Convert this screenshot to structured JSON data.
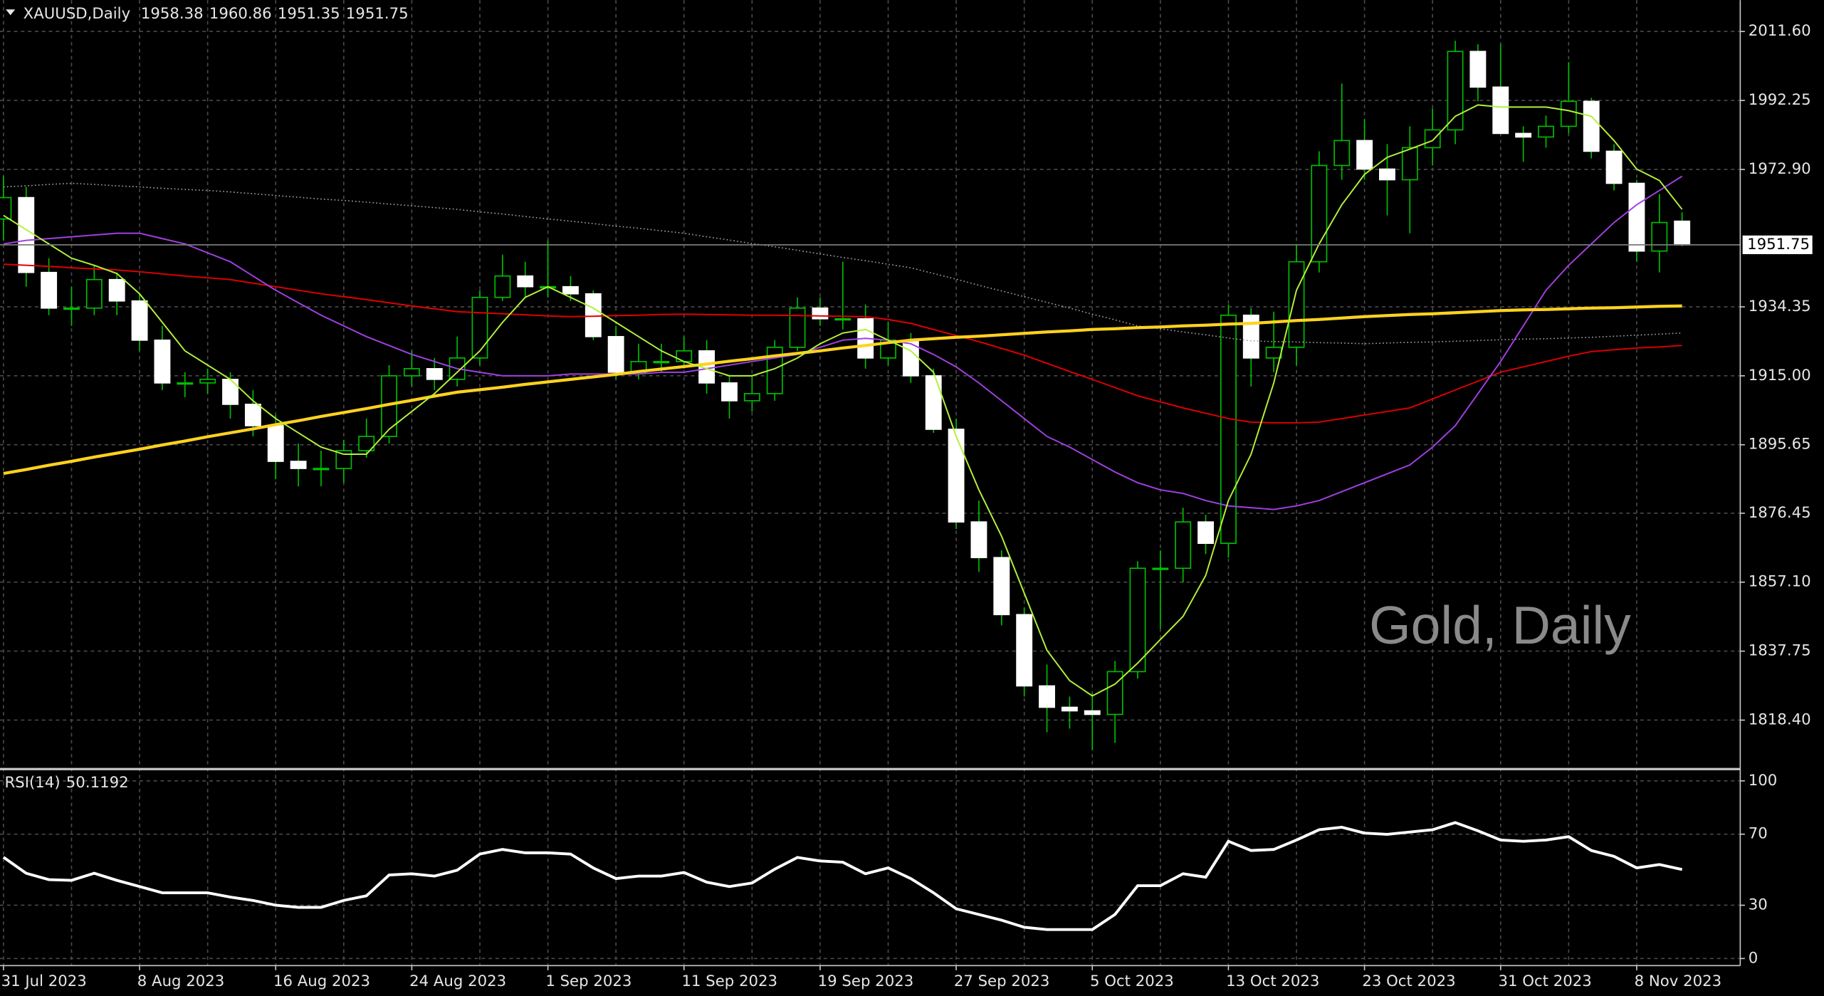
{
  "chart_data": [
    {
      "type": "candlestick",
      "title": "XAUUSD,Daily",
      "watermark": "Gold, Daily",
      "categories": [
        "31 Jul 2023",
        null,
        null,
        null,
        null,
        null,
        "8 Aug 2023",
        null,
        null,
        null,
        null,
        null,
        "16 Aug 2023",
        null,
        null,
        null,
        null,
        null,
        "24 Aug 2023",
        null,
        null,
        null,
        null,
        null,
        "1 Sep 2023",
        null,
        null,
        null,
        null,
        null,
        "11 Sep 2023",
        null,
        null,
        null,
        null,
        null,
        "19 Sep 2023",
        null,
        null,
        null,
        null,
        null,
        "27 Sep 2023",
        null,
        null,
        null,
        null,
        null,
        "5 Oct 2023",
        null,
        null,
        null,
        null,
        null,
        "13 Oct 2023",
        null,
        null,
        null,
        null,
        null,
        "23 Oct 2023",
        null,
        null,
        null,
        null,
        null,
        "31 Oct 2023",
        null,
        null,
        null,
        null,
        null,
        "8 Nov 2023",
        null,
        null
      ],
      "open": [
        1959,
        1965,
        1944,
        1934,
        1934,
        1942,
        1936,
        1925,
        1913,
        1913,
        1914,
        1907,
        1901,
        1891,
        1889,
        1889,
        1894,
        1898,
        1915,
        1917,
        1914,
        1920,
        1937,
        1943,
        1940,
        1940,
        1938,
        1926,
        1916,
        1919,
        1919,
        1922,
        1913,
        1908,
        1910,
        1923,
        1934,
        1931,
        1931,
        1920,
        1925,
        1915,
        1900,
        1874,
        1864,
        1848,
        1828,
        1822,
        1821,
        1820,
        1832,
        1861,
        1861,
        1874,
        1868,
        1932,
        1920,
        1923,
        1947,
        1974,
        1981,
        1973,
        1970,
        1979,
        1984,
        2006,
        1996,
        1983,
        1982,
        1985,
        1992,
        1978,
        1969,
        1950,
        1958.38
      ],
      "high": [
        1971,
        1968,
        1948,
        1940,
        1946,
        1944,
        1938,
        1929,
        1916,
        1917,
        1916,
        1911,
        1904,
        1896,
        1894,
        1897,
        1903,
        1918,
        1922,
        1920,
        1926,
        1939,
        1949,
        1947,
        1953,
        1943,
        1939,
        1929,
        1924,
        1924,
        1926,
        1925,
        1915,
        1915,
        1925,
        1937,
        1937,
        1947,
        1935,
        1930,
        1927,
        1917,
        1903,
        1880,
        1866,
        1850,
        1834,
        1825,
        1826,
        1835,
        1863,
        1866,
        1878,
        1876,
        1935,
        1934,
        1933,
        1952,
        1978,
        1997,
        1987,
        1980,
        1985,
        1990,
        2009,
        2008,
        2008,
        1985,
        1988,
        2003,
        1993,
        1980,
        1970,
        1966,
        1960.86
      ],
      "low": [
        1953,
        1940,
        1932,
        1929,
        1932,
        1932,
        1922,
        1911,
        1909,
        1910,
        1903,
        1898,
        1886,
        1884,
        1884,
        1885,
        1892,
        1896,
        1912,
        1911,
        1912,
        1918,
        1936,
        1937,
        1937,
        1936,
        1925,
        1914,
        1914,
        1916,
        1917,
        1910,
        1903,
        1905,
        1908,
        1922,
        1929,
        1928,
        1917,
        1918,
        1913,
        1899,
        1872,
        1860,
        1845,
        1825,
        1815,
        1816,
        1810,
        1812,
        1830,
        1844,
        1857,
        1865,
        1864,
        1912,
        1916,
        1918,
        1944,
        1970,
        1970,
        1960,
        1955,
        1974,
        1980,
        1992,
        1983,
        1975,
        1979,
        1983,
        1976,
        1967,
        1947,
        1944,
        1951.35
      ],
      "close": [
        1965,
        1944,
        1934,
        1934,
        1942,
        1936,
        1925,
        1913,
        1913,
        1914,
        1907,
        1901,
        1891,
        1889,
        1889,
        1894,
        1898,
        1915,
        1917,
        1914,
        1920,
        1937,
        1943,
        1940,
        1940,
        1938,
        1926,
        1916,
        1919,
        1919,
        1922,
        1913,
        1908,
        1910,
        1923,
        1934,
        1931,
        1931,
        1920,
        1925,
        1915,
        1900,
        1874,
        1864,
        1848,
        1828,
        1822,
        1821,
        1820,
        1832,
        1861,
        1861,
        1874,
        1868,
        1932,
        1920,
        1923,
        1947,
        1974,
        1981,
        1973,
        1970,
        1979,
        1984,
        2006,
        1996,
        1983,
        1982,
        1985,
        1992,
        1978,
        1969,
        1950,
        1958,
        1951.75
      ],
      "up_color": "#00c000",
      "down_color": "#ffffff",
      "wick_color": "#00c000",
      "overlays": [
        {
          "color": "#a0a0a0",
          "style": "dotted",
          "values": [
            1968,
            1968.3,
            1968.7,
            1969,
            1968.7,
            1968.3,
            1968,
            1967.6,
            1967.3,
            1967,
            1966.6,
            1966.1,
            1965.6,
            1965.1,
            1964.6,
            1964.2,
            1963.7,
            1963.2,
            1962.7,
            1962.2,
            1961.7,
            1961,
            1960.4,
            1959.7,
            1959,
            1958.4,
            1957.7,
            1957,
            1956.4,
            1955.7,
            1955,
            1954,
            1953.1,
            1952.1,
            1951.2,
            1950.2,
            1949.2,
            1948.2,
            1947.3,
            1946.3,
            1945.3,
            1943.7,
            1942.1,
            1940.4,
            1938.8,
            1937.2,
            1935.6,
            1934,
            1932.3,
            1930.7,
            1929,
            1928.2,
            1927.3,
            1926.5,
            1925.6,
            1924.8,
            1924.6,
            1924.5,
            1924.3,
            1924.2,
            1924,
            1924.2,
            1924.4,
            1924.5,
            1924.7,
            1924.9,
            1925.1,
            1925.3,
            1925.4,
            1925.6,
            1925.8,
            1926.1,
            1926.4,
            1926.7,
            1927
          ]
        },
        {
          "color": "#e00000",
          "style": "thin",
          "values": [
            1946.3,
            1946,
            1945.7,
            1945.3,
            1945,
            1944.7,
            1944.2,
            1943.6,
            1943,
            1942.5,
            1942,
            1941,
            1940,
            1939,
            1938,
            1937.2,
            1936.4,
            1935.5,
            1934.6,
            1933.8,
            1933,
            1932.7,
            1932.4,
            1932.1,
            1931.8,
            1931.6,
            1931.7,
            1931.9,
            1932,
            1932.2,
            1932.3,
            1932.2,
            1932.1,
            1932,
            1932,
            1931.9,
            1931.8,
            1931.7,
            1931.6,
            1930.8,
            1929.7,
            1928,
            1926.3,
            1924.6,
            1922.7,
            1920.8,
            1918.5,
            1916.2,
            1914,
            1911.7,
            1909.4,
            1907.7,
            1906,
            1904.5,
            1903,
            1902,
            1901.8,
            1901.8,
            1902,
            1903,
            1904,
            1905,
            1906,
            1908.5,
            1911,
            1913.5,
            1916,
            1917.5,
            1919,
            1920.5,
            1921.8,
            1922.3,
            1922.8,
            1923.1,
            1923.5
          ]
        },
        {
          "color": "#a040e0",
          "style": "thin",
          "values": [
            1952,
            1953,
            1953.5,
            1954,
            1954.5,
            1955,
            1955,
            1953.5,
            1952,
            1949.5,
            1947,
            1943,
            1939,
            1935.5,
            1932,
            1929,
            1926,
            1923.5,
            1921,
            1919,
            1917,
            1916,
            1915,
            1915,
            1915,
            1915.5,
            1915.5,
            1915.5,
            1915.5,
            1916,
            1916,
            1917,
            1918,
            1919,
            1920,
            1921,
            1923,
            1925,
            1925.5,
            1925,
            1924,
            1921,
            1917.5,
            1913,
            1908,
            1903,
            1898,
            1895,
            1891.5,
            1888,
            1885,
            1883,
            1882,
            1880,
            1878.5,
            1878,
            1877.5,
            1878.5,
            1880,
            1882.5,
            1885,
            1887.5,
            1890,
            1895,
            1901,
            1910,
            1919,
            1929,
            1939,
            1946,
            1952,
            1958,
            1963,
            1967,
            1971
          ]
        },
        {
          "color": "#ffd21f",
          "style": "thick",
          "values": [
            1887.6,
            1888.7,
            1889.9,
            1891,
            1892.2,
            1893.3,
            1894.4,
            1895.6,
            1896.7,
            1897.9,
            1899,
            1900.1,
            1901.3,
            1902.4,
            1903.6,
            1904.7,
            1905.8,
            1907,
            1908.1,
            1909.3,
            1910.4,
            1911.1,
            1911.8,
            1912.6,
            1913.3,
            1914,
            1914.7,
            1915.4,
            1916.2,
            1916.9,
            1917.6,
            1918.3,
            1919.1,
            1919.8,
            1920.6,
            1921.3,
            1922,
            1922.8,
            1923.5,
            1924.3,
            1925,
            1925.4,
            1925.8,
            1926.1,
            1926.5,
            1926.9,
            1927.3,
            1927.6,
            1928,
            1928.2,
            1928.5,
            1928.7,
            1929,
            1929.2,
            1929.5,
            1929.7,
            1930.1,
            1930.5,
            1930.8,
            1931.2,
            1931.6,
            1931.9,
            1932.2,
            1932.4,
            1932.7,
            1933,
            1933.3,
            1933.5,
            1933.6,
            1933.8,
            1934,
            1934.1,
            1934.3,
            1934.5,
            1934.6
          ]
        },
        {
          "color": "#b4f03c",
          "style": "thin",
          "values": [
            1960,
            1956,
            1952,
            1948,
            1946,
            1943.7,
            1938,
            1930,
            1922,
            1918,
            1914,
            1908,
            1903,
            1899,
            1895,
            1893,
            1893,
            1900,
            1905,
            1910,
            1916,
            1922,
            1930,
            1937,
            1940,
            1937,
            1934,
            1930,
            1926,
            1922,
            1919,
            1917,
            1915,
            1915,
            1917,
            1920,
            1924,
            1927,
            1928,
            1925,
            1922,
            1916,
            1898,
            1883,
            1870,
            1854,
            1838,
            1829.5,
            1825.2,
            1828.5,
            1834.4,
            1841,
            1847.5,
            1859,
            1880,
            1893,
            1913,
            1939,
            1952,
            1963,
            1971.5,
            1976.3,
            1978.6,
            1981,
            1987.8,
            1991,
            1990.4,
            1990.4,
            1990.4,
            1989.4,
            1987.8,
            1981,
            1973,
            1969.8,
            1961.7
          ]
        }
      ],
      "ylim": [
        1805,
        2020.4
      ],
      "yticks": [
        {
          "value": 2011.6,
          "label": "2011.60"
        },
        1992.25,
        {
          "value": 1972.9,
          "label": "1972.90"
        },
        1934.35,
        {
          "value": 1915,
          "label": "1915.00"
        },
        1895.65,
        1876.45,
        {
          "value": 1857.1,
          "label": "1857.10"
        },
        1837.75,
        {
          "value": 1818.4,
          "label": "1818.40"
        }
      ],
      "grid": true
    },
    {
      "type": "line",
      "title": "RSI(14)",
      "color": "#ffffff",
      "values": [
        57,
        48,
        44.4,
        44,
        48,
        44,
        40.5,
        37,
        37,
        37,
        34.6,
        32.7,
        30,
        28.8,
        28.8,
        32.7,
        35.3,
        47,
        47.7,
        46.4,
        49.7,
        58.8,
        61.4,
        59.5,
        59.5,
        58.8,
        51,
        45,
        46.4,
        46.4,
        48.4,
        43,
        40.5,
        42.5,
        50.3,
        56.9,
        54.9,
        54.2,
        47.7,
        51,
        45,
        37,
        28,
        24.8,
        21.6,
        17.6,
        16.3,
        16.3,
        16.3,
        24.8,
        41,
        41,
        47.7,
        45.8,
        66,
        60.8,
        61.4,
        66.7,
        72.5,
        73.9,
        70.6,
        69.9,
        71.2,
        72.5,
        76.5,
        71.9,
        66.7,
        66,
        66.7,
        68.6,
        60.8,
        57.5,
        51,
        52.9,
        50.1192
      ],
      "ylim": [
        -4,
        106
      ],
      "yticks": [
        0,
        30,
        70,
        100
      ],
      "grid": true
    }
  ]
}
